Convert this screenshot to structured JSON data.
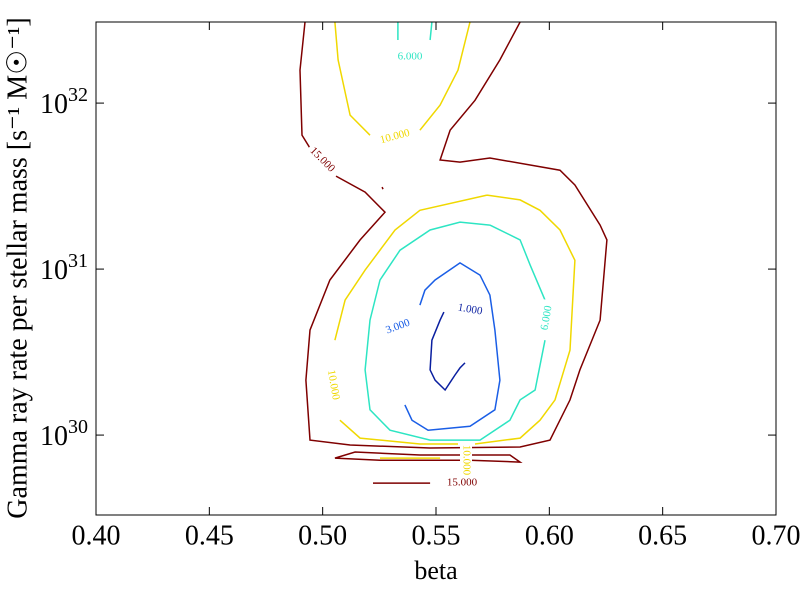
{
  "chart_data": {
    "type": "contour",
    "xlabel": "beta",
    "ylabel": "Gamma ray rate per stellar mass [s⁻¹ M☉⁻¹]",
    "xlim": [
      0.4,
      0.7
    ],
    "ylim": [
      3.3e+29,
      3.08e+32
    ],
    "yscale": "log",
    "xticks": [
      {
        "value": 0.4,
        "label": "0.40"
      },
      {
        "value": 0.45,
        "label": "0.45"
      },
      {
        "value": 0.5,
        "label": "0.50"
      },
      {
        "value": 0.55,
        "label": "0.55"
      },
      {
        "value": 0.6,
        "label": "0.60"
      },
      {
        "value": 0.65,
        "label": "0.65"
      },
      {
        "value": 0.7,
        "label": "0.70"
      }
    ],
    "yticks": [
      {
        "value": 1e+30,
        "label": "10^30"
      },
      {
        "value": 1e+31,
        "label": "10^31"
      },
      {
        "value": 1e+32,
        "label": "10^32"
      }
    ],
    "series": [
      {
        "label": "15.000",
        "color": "#7f0000",
        "x": [
          0.4922,
          0.49,
          0.4909,
          0.4944,
          null,
          0.5059,
          0.5187,
          0.5275,
          0.5165,
          0.5032,
          0.4944,
          0.4926,
          0.4944,
          0.5121,
          0.5474,
          0.5871,
          0.6003,
          0.6091,
          0.6135,
          0.6224,
          0.6254,
          0.6224,
          0.6113,
          0.6047,
          0.5738,
          0.5606,
          0.5518,
          0.5562,
          0.5672,
          0.5782,
          0.5871,
          null,
          0.5054,
          0.5143,
          0.5429,
          0.5826,
          0.5871,
          0.565,
          0.5253,
          0.5054,
          null,
          0.5222,
          0.5474,
          null,
          0.5262,
          0.5266
        ],
        "y": [
          3.08e+32,
          1.58e+32,
          6.41e+31,
          5.36e+31,
          null,
          3.63e+31,
          2.91e+31,
          2.2e+31,
          1.5e+31,
          8.59e+30,
          4.29e+30,
          2.14e+30,
          9.33e+29,
          8.71e+29,
          8.36e+29,
          8.47e+29,
          9.33e+29,
          1.63e+30,
          2.47e+30,
          4.93e+30,
          1.5e+31,
          1.84e+31,
          3.21e+31,
          3.94e+31,
          4.67e+31,
          4.41e+31,
          4.54e+31,
          6.87e+31,
          1.04e+32,
          1.82e+32,
          3.08e+32,
          null,
          7.27e+29,
          7.91e+29,
          7.59e+29,
          7.59e+29,
          6.87e+29,
          7.06e+29,
          7.06e+29,
          7.27e+29,
          null,
          5.14e+29,
          5.14e+29,
          null,
          3.12e+31,
          3.03e+31
        ]
      },
      {
        "label": "10.000",
        "color": "#f0d800",
        "x": [
          0.5054,
          0.5068,
          0.5121,
          0.5209,
          null,
          0.5429,
          0.5518,
          0.5597,
          0.565,
          null,
          0.5725,
          0.5429,
          0.5319,
          0.5187,
          0.5099,
          0.5054,
          null,
          0.5076,
          0.5165,
          0.5429,
          0.5597,
          null,
          0.5672,
          0.5871,
          0.5959,
          0.6025,
          0.6091,
          0.6113,
          0.6047,
          0.5959,
          0.5871,
          0.5725,
          null,
          0.5253,
          0.5518
        ],
        "y": [
          3.08e+32,
          1.82e+32,
          8.47e+31,
          6.41e+31,
          null,
          6.87e+31,
          9.73e+31,
          1.58e+32,
          3.08e+32,
          null,
          2.79e+31,
          2.26e+31,
          1.72e+31,
          9.86e+30,
          6.5e+30,
          3.73e+30,
          null,
          1.23e+30,
          9.59e+29,
          8.83e+29,
          8.83e+29,
          null,
          8.83e+29,
          9.59e+29,
          1.23e+30,
          1.63e+30,
          3.25e+30,
          1.13e+31,
          1.72e+31,
          2.26e+31,
          2.61e+31,
          2.79e+31,
          null,
          7.27e+29,
          7.27e+29
        ]
      },
      {
        "label": "6.000",
        "color": "#2de5c3",
        "x": [
          0.5332,
          0.5332,
          null,
          0.5474,
          0.5482,
          null,
          0.5738,
          0.5606,
          0.5474,
          0.5341,
          0.5253,
          0.5209,
          0.5187,
          0.5209,
          0.5297,
          0.5474,
          0.5694,
          0.5826,
          0.5871,
          0.5937,
          0.5981,
          null,
          0.5981,
          0.5915,
          0.5871,
          0.5738
        ],
        "y": [
          3.08e+32,
          2.4e+32,
          null,
          2.4e+32,
          3.08e+32,
          null,
          1.84e+31,
          1.92e+31,
          1.72e+31,
          1.3e+31,
          8.59e+30,
          4.93e+30,
          2.47e+30,
          1.42e+30,
          1.07e+30,
          9.33e+29,
          9.33e+29,
          1.23e+30,
          1.63e+30,
          1.87e+30,
          3.73e+30,
          null,
          6.5e+30,
          1.06e+31,
          1.5e+31,
          1.84e+31
        ]
      },
      {
        "label": "3.000",
        "color": "#1a5ee6",
        "x": [
          0.5363,
          0.5394,
          0.5465,
          0.565,
          0.576,
          0.5782,
          0.576,
          0.5738,
          0.5694,
          0.5606,
          0.5496,
          0.5451,
          0.5429
        ],
        "y": [
          1.52e+30,
          1.23e+30,
          1.07e+30,
          1.13e+30,
          1.42e+30,
          2.14e+30,
          4.29e+30,
          6.97e+30,
          9.2e+30,
          1.09e+31,
          8.59e+30,
          7.46e+30,
          6.07e+30
        ]
      },
      {
        "label": "1.000",
        "color": "#0a1fa0",
        "x": [
          0.5535,
          0.5518,
          0.5482,
          0.5474,
          0.5496,
          0.554,
          0.5584,
          0.5606,
          0.5628
        ],
        "y": [
          5.51e+30,
          4.93e+30,
          3.73e+30,
          2.47e+30,
          2.14e+30,
          1.87e+30,
          2.3e+30,
          2.54e+30,
          2.72e+30
        ]
      }
    ]
  }
}
